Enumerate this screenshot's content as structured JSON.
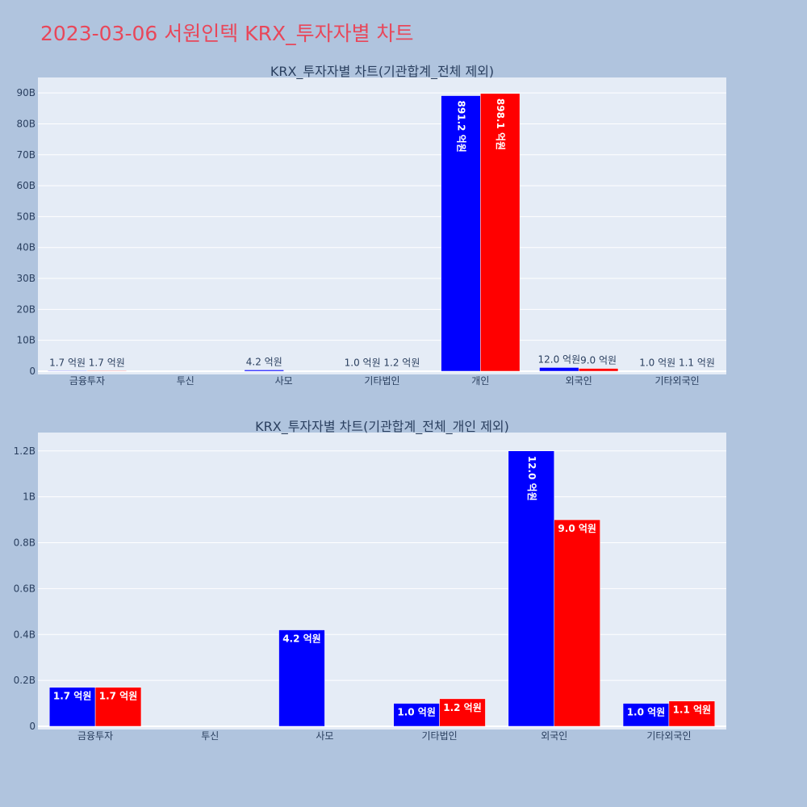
{
  "page": {
    "title": "2023-03-06 서원인텍 KRX_투자자별 차트"
  },
  "colors": {
    "background": "#b0c4de",
    "plot_background": "#e5ecf6",
    "title": "#e8475a",
    "series_blue": "#0000ff",
    "series_red": "#ff0000",
    "text": "#2a3f5f"
  },
  "chart_data": [
    {
      "type": "bar",
      "title": "KRX_투자자별 차트(기관합계_전체 제외)",
      "categories": [
        "금융투자",
        "투신",
        "사모",
        "기타법인",
        "개인",
        "외국인",
        "기타외국인"
      ],
      "series": [
        {
          "color": "#0000ff",
          "values": [
            170000000,
            0,
            420000000,
            100000000,
            89120000000,
            1200000000,
            100000000
          ],
          "labels": [
            "1.7 억원",
            "",
            "4.2 억원",
            "1.0 억원",
            "891.2 억원",
            "12.0 억원",
            "1.0 억원"
          ]
        },
        {
          "color": "#ff0000",
          "values": [
            170000000,
            0,
            0,
            120000000,
            89810000000,
            900000000,
            110000000
          ],
          "labels": [
            "1.7 억원",
            "",
            "",
            "1.2 억원",
            "898.1 억원",
            "9.0 억원",
            "1.1 억원"
          ]
        }
      ],
      "ylim": [
        0,
        95000000000
      ],
      "yticks": [
        0,
        10000000000,
        20000000000,
        30000000000,
        40000000000,
        50000000000,
        60000000000,
        70000000000,
        80000000000,
        90000000000
      ],
      "ytick_labels": [
        "0",
        "10B",
        "20B",
        "30B",
        "40B",
        "50B",
        "60B",
        "70B",
        "80B",
        "90B"
      ],
      "grid": true
    },
    {
      "type": "bar",
      "title": "KRX_투자자별 차트(기관합계_전체_개인 제외)",
      "categories": [
        "금융투자",
        "투신",
        "사모",
        "기타법인",
        "외국인",
        "기타외국인"
      ],
      "series": [
        {
          "color": "#0000ff",
          "values": [
            170000000,
            0,
            420000000,
            100000000,
            1200000000,
            100000000
          ],
          "labels": [
            "1.7 억원",
            "",
            "4.2 억원",
            "1.0 억원",
            "12.0 억원",
            "1.0 억원"
          ]
        },
        {
          "color": "#ff0000",
          "values": [
            170000000,
            0,
            0,
            120000000,
            900000000,
            110000000
          ],
          "labels": [
            "1.7 억원",
            "",
            "",
            "1.2 억원",
            "9.0 억원",
            "1.1 억원"
          ]
        }
      ],
      "ylim": [
        0,
        1280000000
      ],
      "yticks": [
        0,
        200000000,
        400000000,
        600000000,
        800000000,
        1000000000,
        1200000000
      ],
      "ytick_labels": [
        "0",
        "0.2B",
        "0.4B",
        "0.6B",
        "0.8B",
        "1B",
        "1.2B"
      ],
      "grid": true
    }
  ]
}
